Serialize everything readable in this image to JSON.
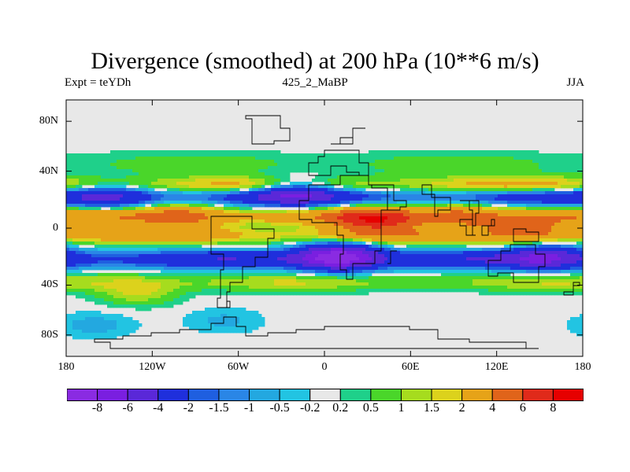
{
  "title": "Divergence (smoothed) at 200 hPa (10**6 m/s)",
  "left_label": "Expt = teYDh",
  "center_label": "425_2_MaBP",
  "right_label": "JJA",
  "y_ticks": [
    {
      "label": "80N",
      "lat": 75
    },
    {
      "label": "40N",
      "lat": 40
    },
    {
      "label": "0",
      "lat": 0
    },
    {
      "label": "40S",
      "lat": -40
    },
    {
      "label": "80S",
      "lat": -75
    }
  ],
  "x_ticks": [
    {
      "label": "180",
      "lon": -180
    },
    {
      "label": "120W",
      "lon": -120
    },
    {
      "label": "60W",
      "lon": -60
    },
    {
      "label": "0",
      "lon": 0
    },
    {
      "label": "60E",
      "lon": 60
    },
    {
      "label": "120E",
      "lon": 120
    },
    {
      "label": "180",
      "lon": 180
    }
  ],
  "colorbar": {
    "labels": [
      "-8",
      "-6",
      "-4",
      "-2",
      "-1.5",
      "-1",
      "-0.5",
      "-0.2",
      "0.2",
      "0.5",
      "1",
      "1.5",
      "2",
      "4",
      "6",
      "8"
    ],
    "colors": [
      "#8a2be2",
      "#7a1fe0",
      "#5a28d8",
      "#1f2fdc",
      "#1f5fe0",
      "#2a86e6",
      "#23a8e0",
      "#22c4e2",
      "#e8e8e8",
      "#1fd08a",
      "#4ad62a",
      "#a6dc1e",
      "#dcd21c",
      "#e6a318",
      "#e0641a",
      "#e02a1a",
      "#e60000"
    ]
  },
  "chart_data": {
    "type": "heatmap",
    "title": "Divergence (smoothed) at 200 hPa (10**6 m/s)",
    "variable": "Divergence (smoothed)",
    "level": "200 hPa",
    "units": "10**6 m/s",
    "season": "JJA",
    "experiment": "teYDh",
    "subtitle": "425_2_MaBP",
    "lon_range": [
      -180,
      180
    ],
    "lat_range": [
      -90,
      90
    ],
    "contour_levels": [
      -8,
      -6,
      -4,
      -2,
      -1.5,
      -1,
      -0.5,
      -0.2,
      0.2,
      0.5,
      1,
      1.5,
      2,
      4,
      6,
      8
    ],
    "bands": [
      {
        "name": "northern positive fringe",
        "lat": 45,
        "amp": 0.6,
        "shape": "wide"
      },
      {
        "name": "northern divergence belt",
        "lat": 30,
        "amp": 2.0
      },
      {
        "name": "northern convergence belt",
        "lat": 22,
        "amp": -2.5
      },
      {
        "name": "tropical divergence belt",
        "lat": 8,
        "amp": 3.0
      },
      {
        "name": "equatorial divergence belt",
        "lat": -5,
        "amp": 2.5
      },
      {
        "name": "southern convergence belt",
        "lat": -22,
        "amp": -3.0
      },
      {
        "name": "southern positive belt",
        "lat": -38,
        "amp": 1.2
      }
    ],
    "blobs": [
      {
        "lon": 10,
        "lat": -20,
        "amp": -8
      },
      {
        "lon": -20,
        "lat": 25,
        "amp": -4
      },
      {
        "lon": 155,
        "lat": -20,
        "amp": -4
      },
      {
        "lon": -150,
        "lat": 22,
        "amp": -2.5
      },
      {
        "lon": 35,
        "lat": 5,
        "amp": 5
      },
      {
        "lon": 140,
        "lat": 0,
        "amp": 4
      },
      {
        "lon": -100,
        "lat": 8,
        "amp": 3
      },
      {
        "lon": 95,
        "lat": 8,
        "amp": 3
      },
      {
        "lon": -130,
        "lat": -45,
        "amp": 1.5
      },
      {
        "lon": -160,
        "lat": -68,
        "amp": -0.7
      },
      {
        "lon": -70,
        "lat": -65,
        "amp": -0.6
      }
    ],
    "coastlines": [
      {
        "name": "Antarctica",
        "points": [
          [
            -150,
            -85
          ],
          [
            -30,
            -85
          ],
          [
            40,
            -85
          ],
          [
            150,
            -85
          ],
          [
            140,
            -80
          ],
          [
            120,
            -80
          ],
          [
            100,
            -78
          ],
          [
            80,
            -72
          ],
          [
            60,
            -70
          ],
          [
            40,
            -68
          ],
          [
            20,
            -70
          ],
          [
            0,
            -72
          ],
          [
            -20,
            -74
          ],
          [
            -40,
            -76
          ],
          [
            -55,
            -70
          ],
          [
            -62,
            -63
          ],
          [
            -70,
            -67
          ],
          [
            -80,
            -72
          ],
          [
            -100,
            -74
          ],
          [
            -120,
            -76
          ],
          [
            -140,
            -78
          ],
          [
            -160,
            -80
          ],
          [
            -150,
            -85
          ]
        ]
      },
      {
        "name": "Africa",
        "points": [
          [
            -17,
            20
          ],
          [
            -10,
            30
          ],
          [
            10,
            36
          ],
          [
            30,
            31
          ],
          [
            33,
            28
          ],
          [
            43,
            12
          ],
          [
            51,
            12
          ],
          [
            40,
            -2
          ],
          [
            40,
            -15
          ],
          [
            35,
            -25
          ],
          [
            20,
            -35
          ],
          [
            15,
            -30
          ],
          [
            12,
            -18
          ],
          [
            13,
            -5
          ],
          [
            8,
            4
          ],
          [
            -8,
            5
          ],
          [
            -17,
            14
          ],
          [
            -17,
            20
          ]
        ]
      },
      {
        "name": "South America",
        "points": [
          [
            -80,
            8
          ],
          [
            -60,
            8
          ],
          [
            -50,
            0
          ],
          [
            -35,
            -8
          ],
          [
            -40,
            -20
          ],
          [
            -48,
            -28
          ],
          [
            -58,
            -38
          ],
          [
            -65,
            -45
          ],
          [
            -68,
            -55
          ],
          [
            -75,
            -50
          ],
          [
            -72,
            -30
          ],
          [
            -70,
            -18
          ],
          [
            -80,
            -5
          ],
          [
            -80,
            8
          ]
        ]
      },
      {
        "name": "Australia",
        "points": [
          [
            114,
            -22
          ],
          [
            122,
            -17
          ],
          [
            130,
            -12
          ],
          [
            137,
            -12
          ],
          [
            142,
            -11
          ],
          [
            146,
            -19
          ],
          [
            153,
            -28
          ],
          [
            150,
            -37
          ],
          [
            140,
            -38
          ],
          [
            132,
            -32
          ],
          [
            120,
            -34
          ],
          [
            115,
            -33
          ],
          [
            114,
            -22
          ]
        ]
      },
      {
        "name": "India",
        "points": [
          [
            68,
            23
          ],
          [
            77,
            8
          ],
          [
            80,
            13
          ],
          [
            88,
            22
          ],
          [
            75,
            30
          ],
          [
            68,
            23
          ]
        ]
      },
      {
        "name": "Arabia",
        "points": [
          [
            34,
            28
          ],
          [
            43,
            13
          ],
          [
            52,
            15
          ],
          [
            57,
            20
          ],
          [
            48,
            30
          ],
          [
            34,
            28
          ]
        ]
      },
      {
        "name": "Southeast Asia",
        "points": [
          [
            95,
            20
          ],
          [
            100,
            13
          ],
          [
            104,
            2
          ],
          [
            106,
            10
          ],
          [
            108,
            20
          ],
          [
            95,
            20
          ]
        ]
      },
      {
        "name": "Europe",
        "points": [
          [
            -10,
            36
          ],
          [
            5,
            43
          ],
          [
            15,
            40
          ],
          [
            25,
            38
          ],
          [
            30,
            45
          ],
          [
            25,
            55
          ],
          [
            10,
            55
          ],
          [
            0,
            50
          ],
          [
            -5,
            45
          ],
          [
            -10,
            36
          ]
        ]
      },
      {
        "name": "Greenland",
        "points": [
          [
            -50,
            60
          ],
          [
            -35,
            62
          ],
          [
            -25,
            70
          ],
          [
            -30,
            78
          ],
          [
            -55,
            76
          ],
          [
            -50,
            60
          ]
        ]
      },
      {
        "name": "Borneo",
        "points": [
          [
            110,
            1
          ],
          [
            117,
            7
          ],
          [
            119,
            1
          ],
          [
            115,
            -4
          ],
          [
            110,
            1
          ]
        ]
      },
      {
        "name": "New Guinea",
        "points": [
          [
            132,
            -1
          ],
          [
            141,
            -3
          ],
          [
            150,
            -10
          ],
          [
            141,
            -9
          ],
          [
            132,
            -1
          ]
        ]
      },
      {
        "name": "New Zealand",
        "points": [
          [
            167,
            -46
          ],
          [
            173,
            -41
          ],
          [
            178,
            -38
          ],
          [
            174,
            -44
          ],
          [
            167,
            -46
          ]
        ]
      },
      {
        "name": "Madagascar",
        "points": [
          [
            44,
            -25
          ],
          [
            47,
            -15
          ],
          [
            50,
            -15
          ],
          [
            47,
            -25
          ],
          [
            44,
            -25
          ]
        ]
      },
      {
        "name": "Southern Tip",
        "points": [
          [
            -68,
            -52
          ],
          [
            -65,
            -55
          ],
          [
            -70,
            -56
          ],
          [
            -68,
            -52
          ]
        ]
      },
      {
        "name": "Sumatra",
        "points": [
          [
            95,
            5
          ],
          [
            104,
            -5
          ],
          [
            106,
            -6
          ],
          [
            98,
            2
          ],
          [
            95,
            5
          ]
        ]
      },
      {
        "name": "Scandinavia",
        "points": [
          [
            5,
            58
          ],
          [
            10,
            64
          ],
          [
            20,
            70
          ],
          [
            28,
            70
          ],
          [
            20,
            60
          ],
          [
            10,
            58
          ],
          [
            5,
            58
          ]
        ]
      }
    ]
  }
}
